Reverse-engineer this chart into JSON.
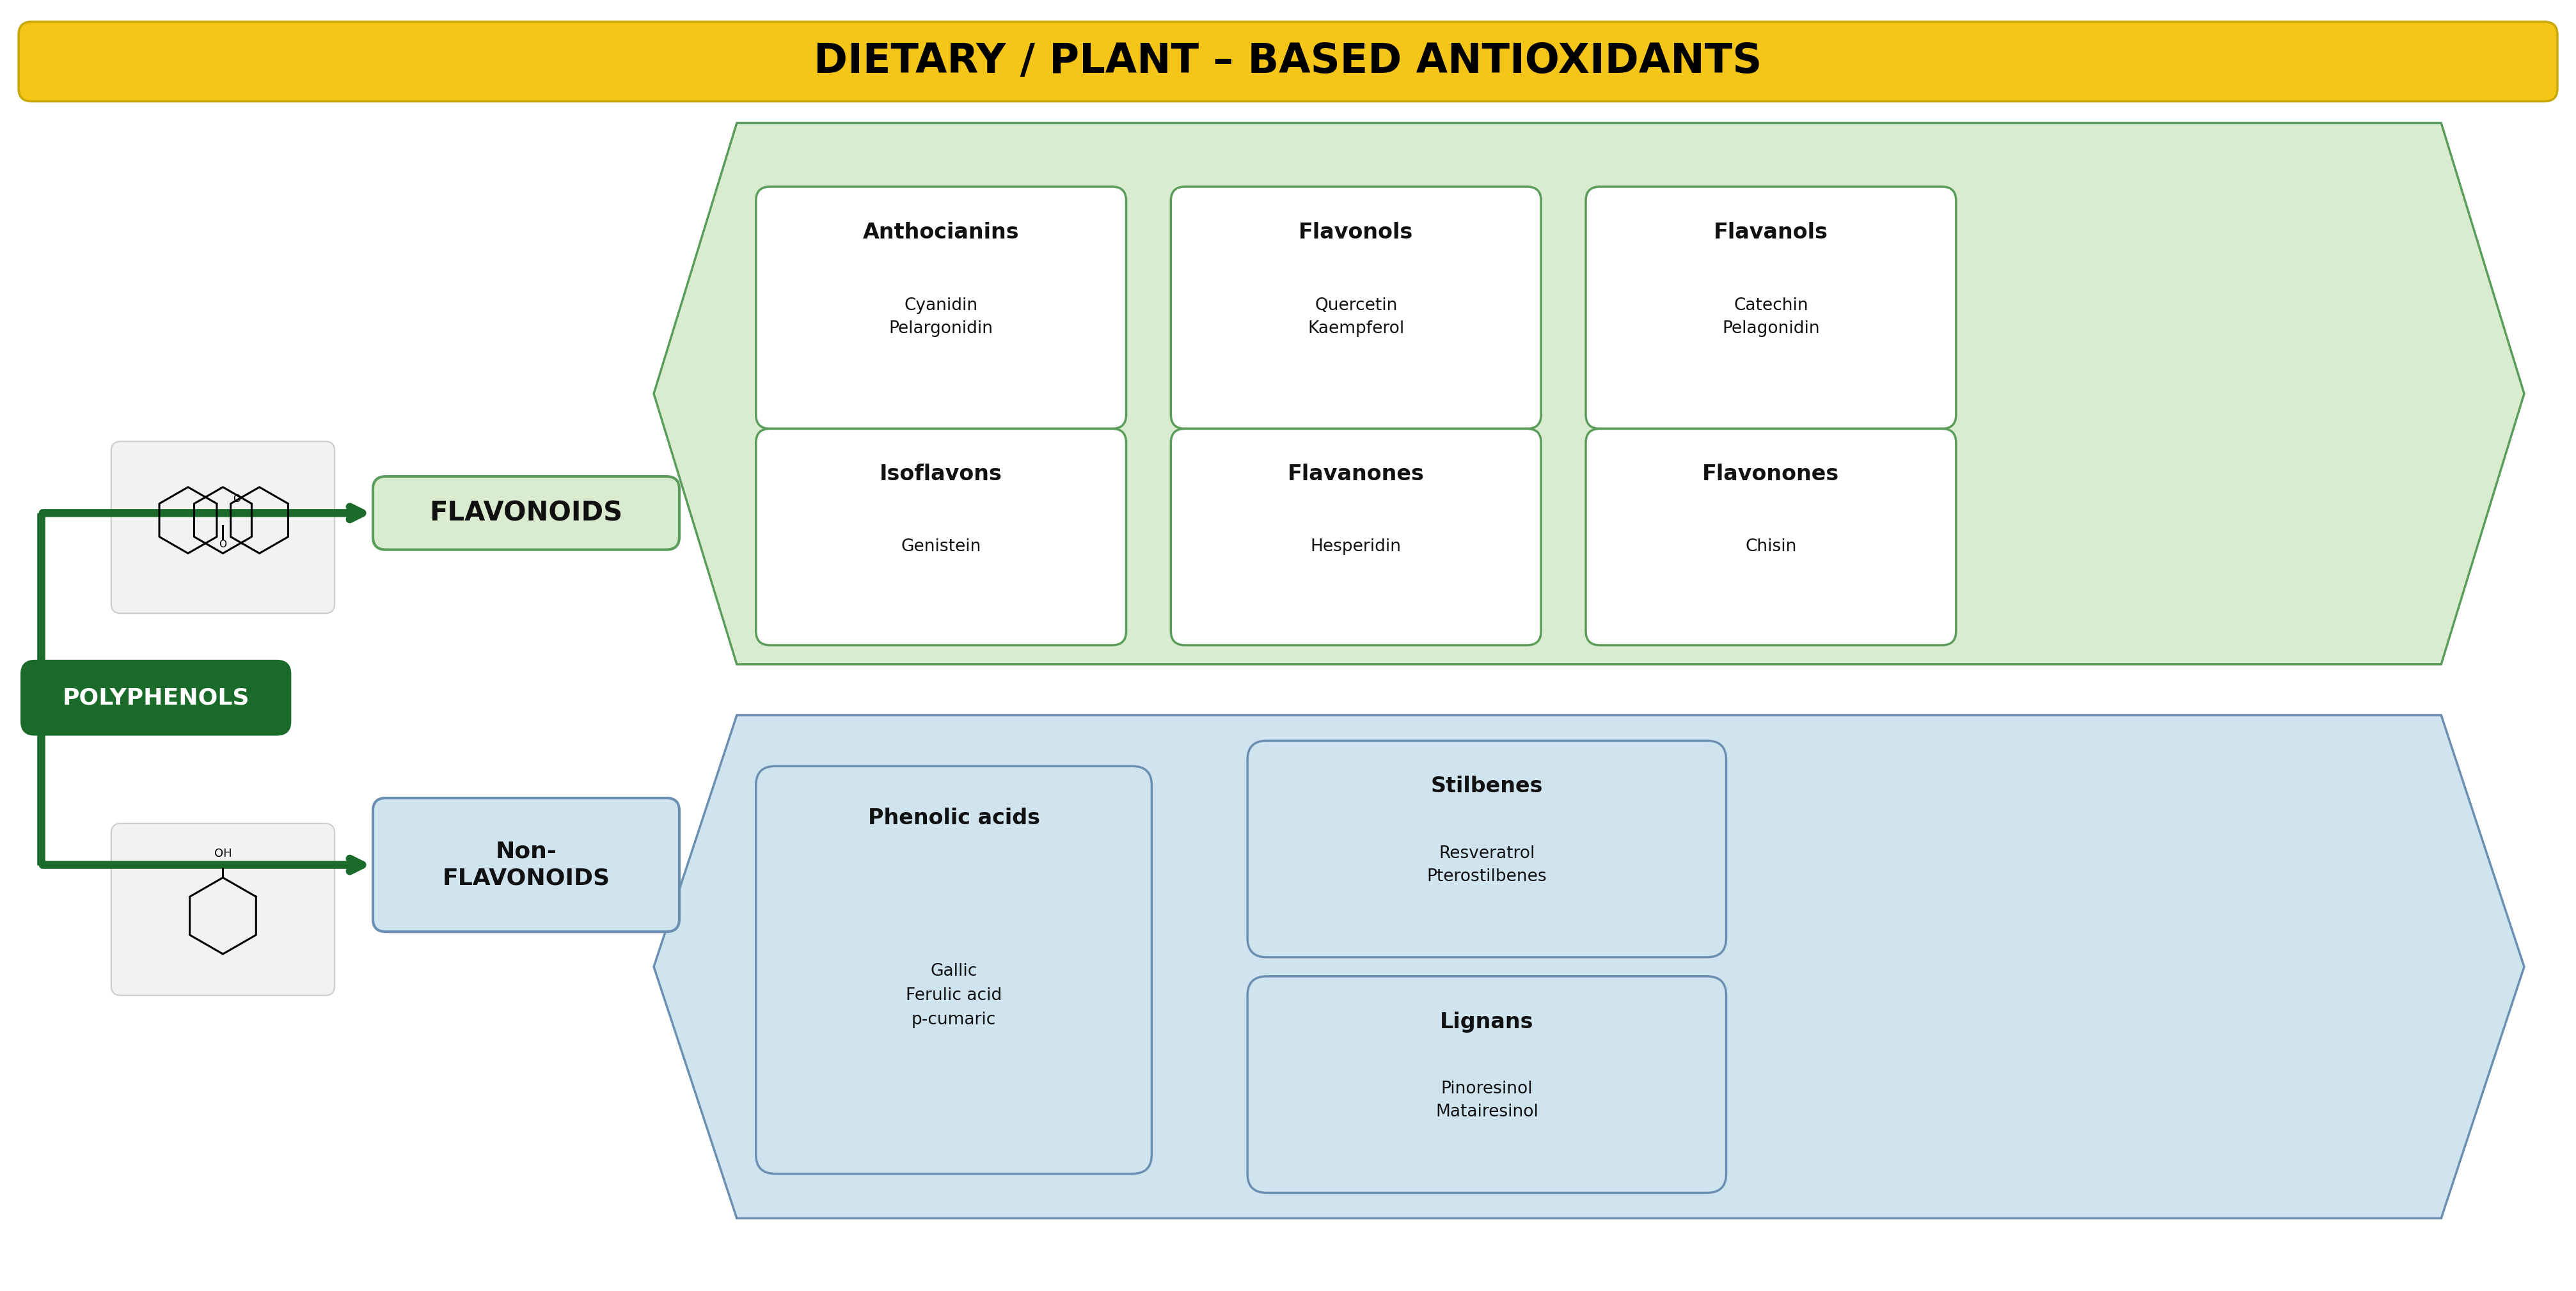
{
  "title": "DIETARY / PLANT – BASED ANTIOXIDANTS",
  "title_bg": "#F5C518",
  "title_color": "#000000",
  "title_fontsize": 46,
  "bg_color": "#ffffff",
  "dark_green": "#1a6b2a",
  "light_green_fill": "#daecd0",
  "light_green_border": "#5a9c5a",
  "light_blue_fill": "#d0e4f0",
  "light_blue_border": "#6a8fb0",
  "polyphenols_label": "POLYPHENOLS",
  "flavonoids_label": "FLAVONOIDS",
  "nonflavonoids_label": "Non-\nFLAVONOIDS",
  "flavonoid_boxes": [
    {
      "bold": "Anthocianins",
      "normal": "Cyanidin\nPelargonidin"
    },
    {
      "bold": "Flavonols",
      "normal": "Quercetin\nKaempferol"
    },
    {
      "bold": "Flavanols",
      "normal": "Catechin\nPelagonidin"
    },
    {
      "bold": "Isoflavons",
      "normal": "Genistein"
    },
    {
      "bold": "Flavanones",
      "normal": "Hesperidin"
    },
    {
      "bold": "Flavonones",
      "normal": "Chisin"
    }
  ],
  "nonflavonoid_boxes": [
    {
      "bold": "Phenolic acids",
      "normal": "Gallic\nFerulic acid\np-cumaric"
    },
    {
      "bold": "Stilbenes",
      "normal": "Resveratrol\nPterostilbenes"
    },
    {
      "bold": "Lignans",
      "normal": "Pinoresinol\nMatairesinol"
    }
  ],
  "figw": 40.27,
  "figh": 20.19
}
